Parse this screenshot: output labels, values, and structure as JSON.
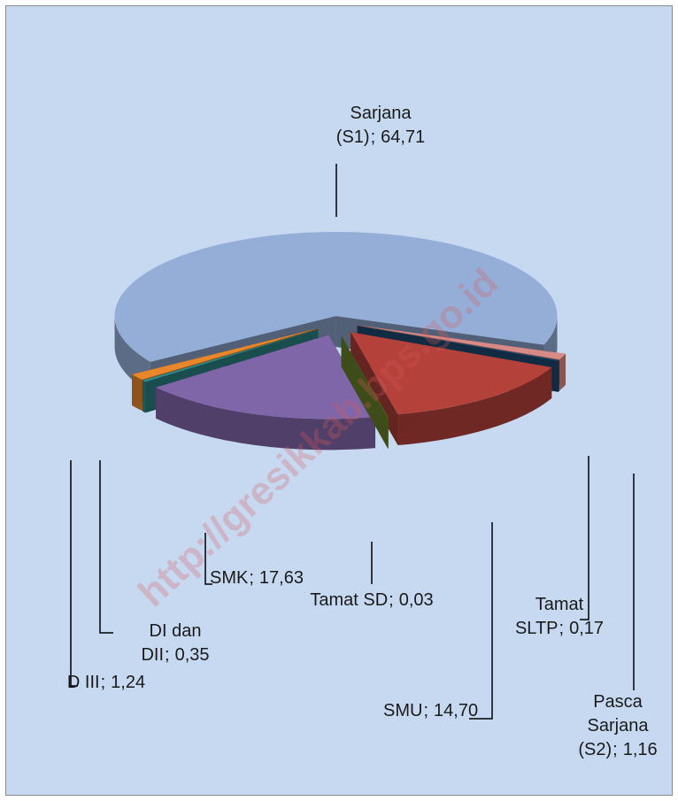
{
  "chart_data": {
    "type": "pie3d",
    "categories": [
      "Sarjana (S1)",
      "Pasca Sarjana (S2)",
      "Tamat SLTP",
      "SMU",
      "Tamat SD",
      "SMK",
      "DI dan DII",
      "D III"
    ],
    "values": [
      64.71,
      1.16,
      0.17,
      14.7,
      0.03,
      17.63,
      0.35,
      1.24
    ],
    "value_labels": [
      "64,71",
      "1,16",
      "0,17",
      "14,70",
      "0,03",
      "17,63",
      "0,35",
      "1,24"
    ],
    "label_separator": ";",
    "colors": [
      "#95aed8",
      "#d88a86",
      "#1f4e7a",
      "#b5413b",
      "#6f8b2c",
      "#7f66a9",
      "#2f8c8c",
      "#e8862c"
    ],
    "watermark": "http://gresikkab.bps.go.id"
  }
}
